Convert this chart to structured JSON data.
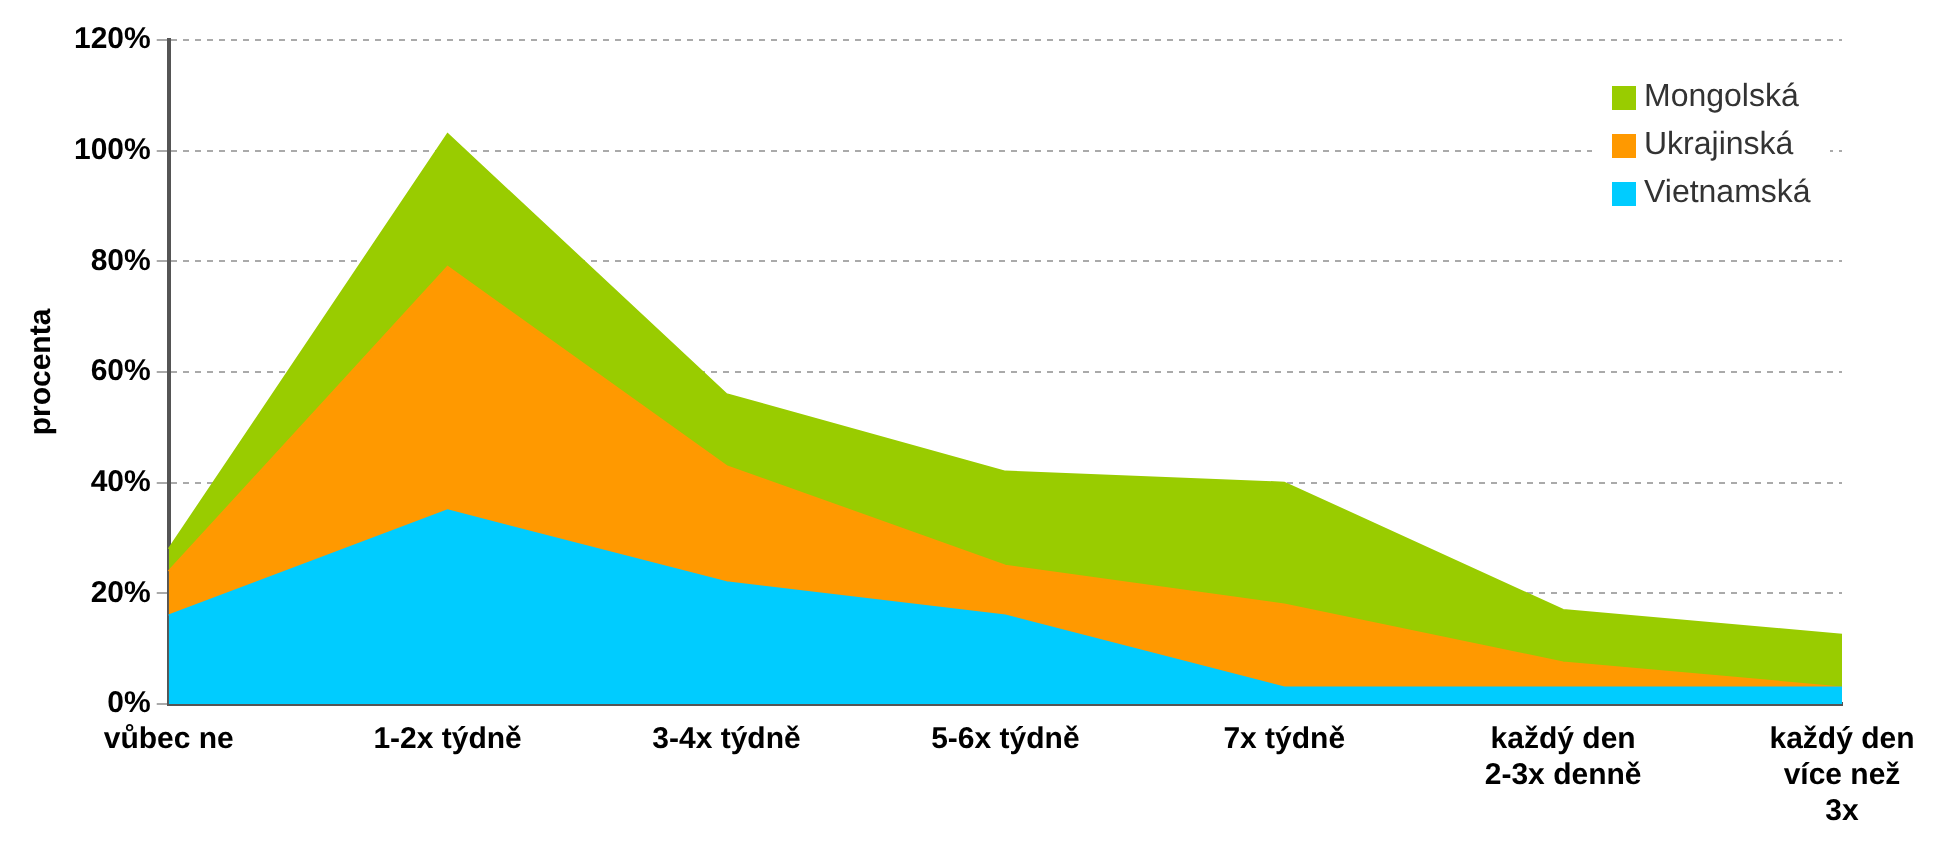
{
  "chart_data": {
    "type": "area",
    "stacked": true,
    "ylabel": "procenta",
    "categories": [
      "vůbec ne",
      "1-2x týdně",
      "3-4x týdně",
      "5-6x týdně",
      "7x týdně",
      "každý den\n2-3x denně",
      "každý den\nvíce než\n3x"
    ],
    "series": [
      {
        "name": "Vietnamská",
        "color": "#00ccff",
        "values": [
          16,
          35,
          22,
          16,
          3,
          3,
          3
        ]
      },
      {
        "name": "Ukrajinská",
        "color": "#ff9900",
        "values": [
          8,
          44,
          21,
          9,
          15,
          4.5,
          0
        ]
      },
      {
        "name": "Mongolská",
        "color": "#99cc00",
        "values": [
          4,
          24,
          13,
          17,
          22,
          9.5,
          9.5
        ]
      }
    ],
    "ylim": [
      0,
      120
    ],
    "yticks": [
      {
        "value": 0,
        "label": "0%"
      },
      {
        "value": 20,
        "label": "20%"
      },
      {
        "value": 40,
        "label": "40%"
      },
      {
        "value": 60,
        "label": "60%"
      },
      {
        "value": 80,
        "label": "80%"
      },
      {
        "value": 100,
        "label": "100%"
      },
      {
        "value": 120,
        "label": "120%"
      }
    ],
    "grid": "y",
    "legend": "top right"
  }
}
